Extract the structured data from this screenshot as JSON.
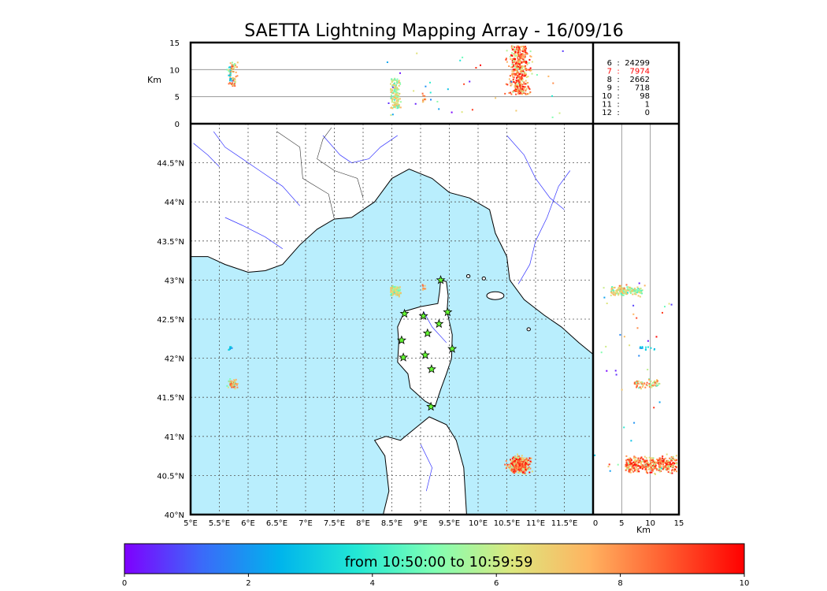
{
  "title": "SAETTA Lightning Mapping Array - 16/09/16",
  "colors": {
    "sea": "#b9eefd",
    "land": "#ffffff",
    "coast": "#000000",
    "river": "#3333ff",
    "border": "#333333",
    "grid": "#555555",
    "star": "#66ff33",
    "highlight": "#ff0000"
  },
  "top_panel": {
    "ylabel": "Km",
    "yticks": [
      "0",
      "5",
      "10",
      "15"
    ],
    "ylim": [
      0,
      15
    ]
  },
  "right_panel": {
    "xlabel": "Km",
    "xticks": [
      "0",
      "5",
      "10",
      "15"
    ],
    "xlim": [
      0,
      15
    ]
  },
  "station_counts": [
    {
      "stations": "6",
      "count": "24299",
      "highlight": false
    },
    {
      "stations": "7",
      "count": "7974",
      "highlight": true
    },
    {
      "stations": "8",
      "count": "2662",
      "highlight": false
    },
    {
      "stations": "9",
      "count": "718",
      "highlight": false
    },
    {
      "stations": "10",
      "count": "98",
      "highlight": false
    },
    {
      "stations": "11",
      "count": "1",
      "highlight": false
    },
    {
      "stations": "12",
      "count": "0",
      "highlight": false
    }
  ],
  "colorbar": {
    "label": "from 10:50:00 to 10:59:59",
    "ticks": [
      "0",
      "2",
      "4",
      "6",
      "8",
      "10"
    ],
    "range": [
      0,
      10
    ],
    "colors": [
      "#7f00ff",
      "#3b6af9",
      "#00b4ec",
      "#23e8d5",
      "#80ffb4",
      "#dce77e",
      "#ffb360",
      "#ff5c2f",
      "#ff0000"
    ]
  },
  "chart_data": {
    "type": "scatter",
    "title": "SAETTA Lightning Mapping Array - 16/09/16",
    "map": {
      "lon_range": [
        5,
        12
      ],
      "lat_range": [
        40,
        45
      ],
      "x_tick_labels": [
        "5°E",
        "5.5°E",
        "6°E",
        "6.5°E",
        "7°E",
        "7.5°E",
        "8°E",
        "8.5°E",
        "9°E",
        "9.5°E",
        "10°E",
        "10.5°E",
        "11°E",
        "11.5°E"
      ],
      "y_tick_labels": [
        "40°N",
        "40.5°N",
        "41°N",
        "41.5°N",
        "42°N",
        "42.5°N",
        "43°N",
        "43.5°N",
        "44°N",
        "44.5°N"
      ],
      "grid": true
    },
    "stations": [
      {
        "lon": 9.35,
        "lat": 43.0
      },
      {
        "lon": 8.72,
        "lat": 42.57
      },
      {
        "lon": 9.05,
        "lat": 42.54
      },
      {
        "lon": 9.47,
        "lat": 42.59
      },
      {
        "lon": 9.32,
        "lat": 42.44
      },
      {
        "lon": 9.12,
        "lat": 42.32
      },
      {
        "lon": 8.67,
        "lat": 42.23
      },
      {
        "lon": 9.55,
        "lat": 42.12
      },
      {
        "lon": 8.7,
        "lat": 42.01
      },
      {
        "lon": 9.08,
        "lat": 42.04
      },
      {
        "lon": 9.19,
        "lat": 41.86
      },
      {
        "lon": 9.18,
        "lat": 41.38
      }
    ],
    "lightning_clusters": [
      {
        "lon": 10.7,
        "lat": 40.65,
        "lon_spread": 0.12,
        "lat_spread": 0.07,
        "alt_min": 5.5,
        "alt_max": 14.5,
        "time_min": 5,
        "time_max": 10,
        "n": 420
      },
      {
        "lon": 8.55,
        "lat": 42.87,
        "lon_spread": 0.06,
        "lat_spread": 0.04,
        "alt_min": 3,
        "alt_max": 8.5,
        "time_min": 3.5,
        "time_max": 7.5,
        "n": 150
      },
      {
        "lon": 5.72,
        "lat": 41.68,
        "lon_spread": 0.05,
        "lat_spread": 0.04,
        "alt_min": 7,
        "alt_max": 11.5,
        "time_min": 3,
        "time_max": 9,
        "n": 70
      },
      {
        "lon": 5.68,
        "lat": 42.13,
        "lon_spread": 0.02,
        "lat_spread": 0.02,
        "alt_min": 8,
        "alt_max": 11,
        "time_min": 1,
        "time_max": 4,
        "n": 12
      },
      {
        "lon": 9.05,
        "lat": 42.92,
        "lon_spread": 0.03,
        "lat_spread": 0.02,
        "alt_min": 4,
        "alt_max": 6,
        "time_min": 6,
        "time_max": 9,
        "n": 10
      }
    ]
  }
}
